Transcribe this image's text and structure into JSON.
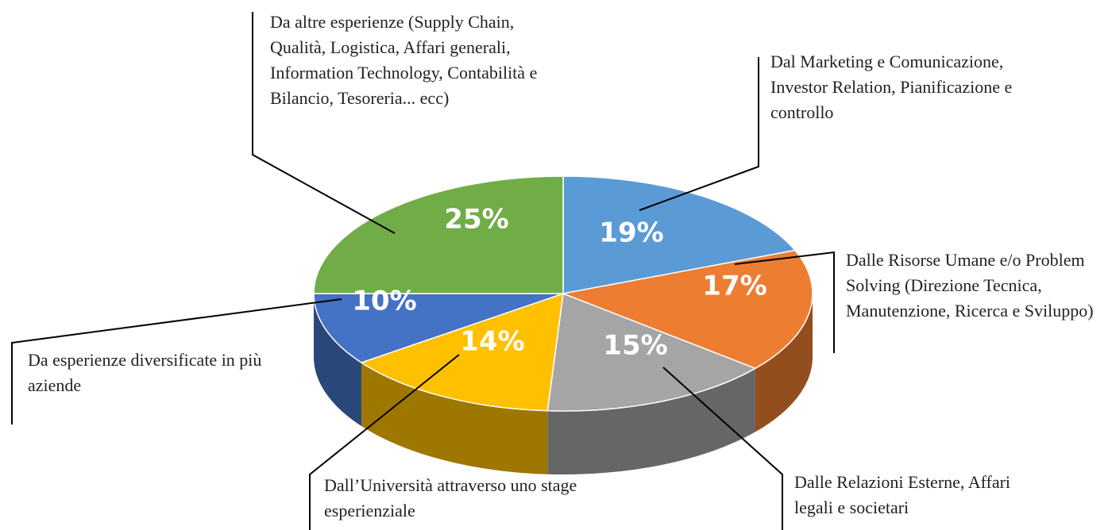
{
  "chart_data": {
    "type": "pie",
    "categories": [
      "Dal Marketing e Comunicazione, Investor Relation, Pianificazione e controllo",
      "Dalle Risorse Umane e/o Problem Solving (Direzione Tecnica, Manutenzione, Ricerca e Sviluppo)",
      "Dalle Relazioni Esterne, Affari legali e societari",
      "Dall’Università attraverso uno stage esperienziale",
      "Da esperienze diversificate in più aziende",
      "Da altre esperienze (Supply Chain, Qualità, Logistica, Affari generali, Information Technology, Contabilità e Bilancio, Tesoreria... ecc)"
    ],
    "values": [
      19,
      17,
      15,
      14,
      10,
      25
    ],
    "value_labels": [
      "19%",
      "17%",
      "15%",
      "14%",
      "10%",
      "25%"
    ],
    "colors": [
      "#5b9bd5",
      "#ed7d31",
      "#a5a5a5",
      "#ffc000",
      "#4472c4",
      "#70ad47"
    ]
  }
}
